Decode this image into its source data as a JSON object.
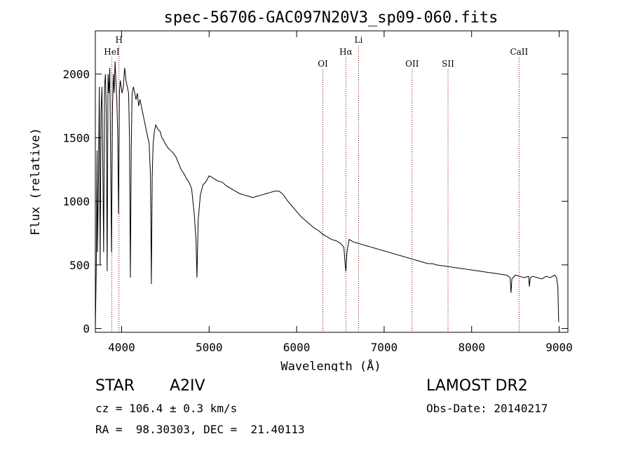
{
  "chart_data": {
    "type": "line",
    "title": "spec-56706-GAC097N20V3_sp09-060.fits",
    "xlabel": "Wavelength (Å)",
    "ylabel": "Flux (relative)",
    "xlim": [
      3700,
      9100
    ],
    "ylim": [
      -30,
      2340
    ],
    "x_ticks": [
      4000,
      5000,
      6000,
      7000,
      8000,
      9000
    ],
    "y_ticks": [
      0,
      500,
      1000,
      1500,
      2000
    ],
    "grid": false,
    "line_color": "#000000",
    "marker_color": "#8b0000",
    "spectral_lines": [
      {
        "label": "HeI",
        "wavelength": 3888
      },
      {
        "label": "H",
        "wavelength": 3970
      },
      {
        "label": "OI",
        "wavelength": 6300
      },
      {
        "label": "Hα",
        "wavelength": 6563
      },
      {
        "label": "Li",
        "wavelength": 6708
      },
      {
        "label": "OII",
        "wavelength": 7320
      },
      {
        "label": "SII",
        "wavelength": 7730
      },
      {
        "label": "CaII",
        "wavelength": 8542
      }
    ],
    "series": [
      {
        "values": [
          [
            3700,
            0
          ],
          [
            3710,
            450
          ],
          [
            3720,
            1400
          ],
          [
            3725,
            600
          ],
          [
            3735,
            1100
          ],
          [
            3745,
            1900
          ],
          [
            3755,
            500
          ],
          [
            3765,
            1700
          ],
          [
            3775,
            1900
          ],
          [
            3785,
            1300
          ],
          [
            3795,
            600
          ],
          [
            3805,
            1900
          ],
          [
            3815,
            2000
          ],
          [
            3825,
            1700
          ],
          [
            3835,
            450
          ],
          [
            3845,
            2000
          ],
          [
            3855,
            1850
          ],
          [
            3865,
            2050
          ],
          [
            3875,
            1300
          ],
          [
            3885,
            600
          ],
          [
            3895,
            1700
          ],
          [
            3905,
            2000
          ],
          [
            3915,
            1850
          ],
          [
            3925,
            2100
          ],
          [
            3935,
            1950
          ],
          [
            3945,
            1800
          ],
          [
            3955,
            1550
          ],
          [
            3965,
            900
          ],
          [
            3975,
            1850
          ],
          [
            3985,
            1950
          ],
          [
            3995,
            1900
          ],
          [
            4005,
            1850
          ],
          [
            4020,
            1900
          ],
          [
            4035,
            2050
          ],
          [
            4050,
            1950
          ],
          [
            4065,
            1900
          ],
          [
            4080,
            1850
          ],
          [
            4090,
            1500
          ],
          [
            4100,
            400
          ],
          [
            4110,
            1400
          ],
          [
            4120,
            1850
          ],
          [
            4135,
            1900
          ],
          [
            4150,
            1850
          ],
          [
            4165,
            1800
          ],
          [
            4180,
            1850
          ],
          [
            4195,
            1750
          ],
          [
            4210,
            1800
          ],
          [
            4225,
            1750
          ],
          [
            4240,
            1700
          ],
          [
            4255,
            1650
          ],
          [
            4270,
            1600
          ],
          [
            4285,
            1550
          ],
          [
            4300,
            1500
          ],
          [
            4315,
            1450
          ],
          [
            4330,
            1200
          ],
          [
            4340,
            350
          ],
          [
            4350,
            1200
          ],
          [
            4360,
            1450
          ],
          [
            4375,
            1550
          ],
          [
            4390,
            1600
          ],
          [
            4405,
            1580
          ],
          [
            4420,
            1560
          ],
          [
            4440,
            1550
          ],
          [
            4460,
            1500
          ],
          [
            4480,
            1480
          ],
          [
            4500,
            1450
          ],
          [
            4530,
            1420
          ],
          [
            4560,
            1400
          ],
          [
            4590,
            1380
          ],
          [
            4620,
            1350
          ],
          [
            4650,
            1300
          ],
          [
            4680,
            1250
          ],
          [
            4710,
            1220
          ],
          [
            4740,
            1180
          ],
          [
            4770,
            1150
          ],
          [
            4800,
            1100
          ],
          [
            4830,
            900
          ],
          [
            4850,
            700
          ],
          [
            4861,
            400
          ],
          [
            4875,
            850
          ],
          [
            4900,
            1050
          ],
          [
            4930,
            1130
          ],
          [
            4960,
            1150
          ],
          [
            5000,
            1200
          ],
          [
            5050,
            1180
          ],
          [
            5100,
            1160
          ],
          [
            5150,
            1150
          ],
          [
            5200,
            1120
          ],
          [
            5250,
            1100
          ],
          [
            5300,
            1080
          ],
          [
            5350,
            1060
          ],
          [
            5400,
            1050
          ],
          [
            5450,
            1040
          ],
          [
            5500,
            1030
          ],
          [
            5550,
            1040
          ],
          [
            5600,
            1050
          ],
          [
            5650,
            1060
          ],
          [
            5700,
            1070
          ],
          [
            5750,
            1080
          ],
          [
            5800,
            1080
          ],
          [
            5850,
            1050
          ],
          [
            5900,
            1000
          ],
          [
            5950,
            960
          ],
          [
            6000,
            920
          ],
          [
            6050,
            880
          ],
          [
            6100,
            850
          ],
          [
            6150,
            820
          ],
          [
            6200,
            790
          ],
          [
            6250,
            770
          ],
          [
            6300,
            740
          ],
          [
            6350,
            720
          ],
          [
            6400,
            700
          ],
          [
            6450,
            690
          ],
          [
            6500,
            670
          ],
          [
            6540,
            640
          ],
          [
            6555,
            500
          ],
          [
            6563,
            450
          ],
          [
            6575,
            600
          ],
          [
            6600,
            700
          ],
          [
            6650,
            680
          ],
          [
            6700,
            670
          ],
          [
            6750,
            660
          ],
          [
            6800,
            650
          ],
          [
            6850,
            640
          ],
          [
            6900,
            630
          ],
          [
            6950,
            620
          ],
          [
            7000,
            610
          ],
          [
            7050,
            600
          ],
          [
            7100,
            590
          ],
          [
            7150,
            580
          ],
          [
            7200,
            570
          ],
          [
            7250,
            560
          ],
          [
            7300,
            550
          ],
          [
            7350,
            540
          ],
          [
            7400,
            530
          ],
          [
            7450,
            520
          ],
          [
            7500,
            510
          ],
          [
            7550,
            510
          ],
          [
            7600,
            500
          ],
          [
            7650,
            495
          ],
          [
            7700,
            490
          ],
          [
            7750,
            485
          ],
          [
            7800,
            480
          ],
          [
            7850,
            475
          ],
          [
            7900,
            470
          ],
          [
            7950,
            465
          ],
          [
            8000,
            460
          ],
          [
            8050,
            455
          ],
          [
            8100,
            450
          ],
          [
            8150,
            445
          ],
          [
            8200,
            440
          ],
          [
            8250,
            435
          ],
          [
            8300,
            430
          ],
          [
            8350,
            425
          ],
          [
            8400,
            420
          ],
          [
            8440,
            400
          ],
          [
            8450,
            280
          ],
          [
            8460,
            390
          ],
          [
            8500,
            420
          ],
          [
            8550,
            410
          ],
          [
            8600,
            400
          ],
          [
            8650,
            410
          ],
          [
            8660,
            330
          ],
          [
            8670,
            400
          ],
          [
            8700,
            410
          ],
          [
            8750,
            400
          ],
          [
            8800,
            390
          ],
          [
            8850,
            410
          ],
          [
            8900,
            400
          ],
          [
            8950,
            420
          ],
          [
            8970,
            400
          ],
          [
            8985,
            330
          ],
          [
            8995,
            50
          ]
        ]
      }
    ]
  },
  "info": {
    "object_class": "STAR",
    "subclass": "A2IV",
    "survey": "LAMOST DR2",
    "redshift": "cz = 106.4 ± 0.3 km/s",
    "obs_date": "Obs-Date: 20140217",
    "coords": "RA =  98.30303, DEC =  21.40113"
  }
}
